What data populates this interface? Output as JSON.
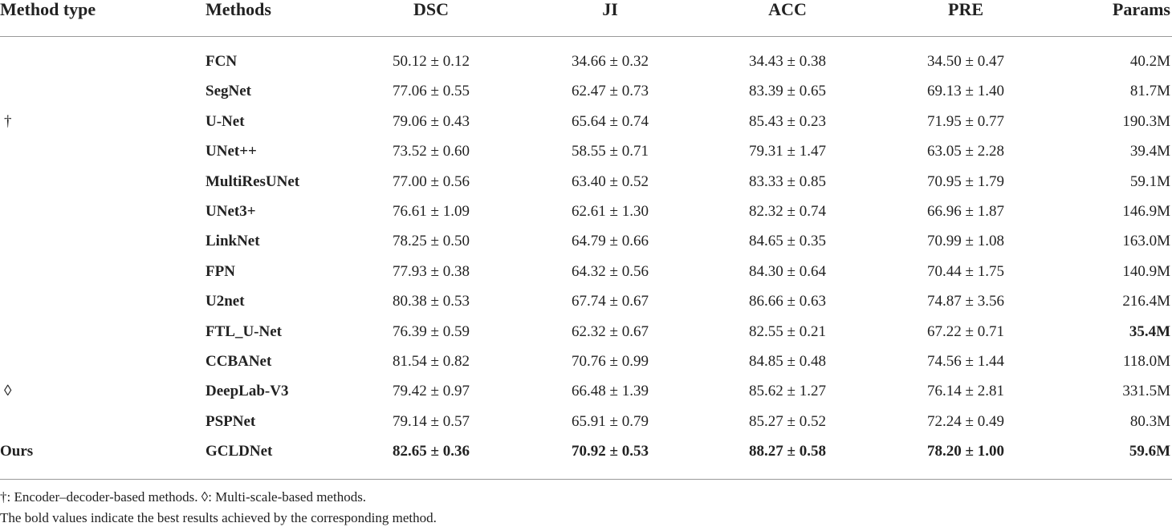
{
  "table": {
    "header": [
      "Method type",
      "Methods",
      "DSC",
      "JI",
      "ACC",
      "PRE",
      "Params"
    ],
    "rows": [
      [
        null,
        "FCN",
        "50.12 ± 0.12",
        "34.66 ± 0.32",
        "34.43 ± 0.38",
        "34.50 ± 0.47",
        "40.2M"
      ],
      [
        null,
        "SegNet",
        "77.06 ± 0.55",
        "62.47 ± 0.73",
        "83.39 ± 0.65",
        "69.13 ± 1.40",
        "81.7M"
      ],
      [
        "†",
        "U-Net",
        "79.06 ± 0.43",
        "65.64 ± 0.74",
        "85.43 ± 0.23",
        "71.95 ± 0.77",
        "190.3M"
      ],
      [
        null,
        "UNet++",
        "73.52 ± 0.60",
        "58.55 ± 0.71",
        "79.31 ± 1.47",
        "63.05 ± 2.28",
        "39.4M"
      ],
      [
        null,
        "MultiResUNet",
        "77.00 ± 0.56",
        "63.40 ± 0.52",
        "83.33 ± 0.85",
        "70.95 ± 1.79",
        "59.1M"
      ],
      [
        null,
        "UNet3+",
        "76.61 ± 1.09",
        "62.61 ± 1.30",
        "82.32 ± 0.74",
        "66.96 ± 1.87",
        "146.9M"
      ],
      [
        null,
        "LinkNet",
        "78.25 ± 0.50",
        "64.79 ± 0.66",
        "84.65 ± 0.35",
        "70.99 ± 1.08",
        "163.0M"
      ],
      [
        null,
        "FPN",
        "77.93 ± 0.38",
        "64.32 ± 0.56",
        "84.30 ± 0.64",
        "70.44 ± 1.75",
        "140.9M"
      ],
      [
        null,
        "U2net",
        "80.38 ± 0.53",
        "67.74 ± 0.67",
        "86.66 ± 0.63",
        "74.87 ± 3.56",
        "216.4M"
      ],
      [
        null,
        "FTL_U-Net",
        "76.39 ± 0.59",
        "62.32 ± 0.67",
        "82.55 ± 0.21",
        "67.22 ± 0.71",
        "35.4M"
      ],
      [
        null,
        "CCBANet",
        "81.54 ± 0.82",
        "70.76 ± 0.99",
        "84.85 ± 0.48",
        "74.56 ± 1.44",
        "118.0M"
      ],
      [
        "◊",
        "DeepLab-V3",
        "79.42 ± 0.97",
        "66.48 ± 1.39",
        "85.62 ± 1.27",
        "76.14 ± 2.81",
        "331.5M"
      ],
      [
        null,
        "PSPNet",
        "79.14 ± 0.57",
        "65.91 ± 0.79",
        "85.27 ± 0.52",
        "72.24 ± 0.49",
        "80.3M"
      ],
      [
        "Ours",
        "GCLDNet",
        "82.65 ± 0.36",
        "70.92 ± 0.53",
        "88.27 ± 0.58",
        "78.20 ± 1.00",
        "59.6M"
      ]
    ]
  },
  "footnotes": [
    "†: Encoder–decoder-based methods. ◊: Multi-scale-based methods.",
    "The bold values indicate the best results achieved by the corresponding method."
  ]
}
